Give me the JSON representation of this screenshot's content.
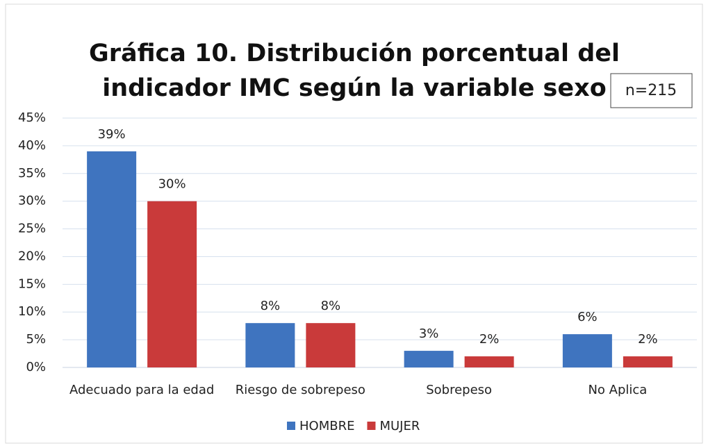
{
  "chart_data": {
    "type": "bar",
    "title": [
      "Gráfica 10. Distribución porcentual del",
      "indicador IMC según la variable sexo"
    ],
    "annotation": "n=215",
    "categories": [
      "Adecuado para la edad",
      "Riesgo de sobrepeso",
      "Sobrepeso",
      "No Aplica"
    ],
    "series": [
      {
        "name": "HOMBRE",
        "color": "#3f74bf",
        "values": [
          39,
          8,
          3,
          6
        ],
        "value_labels": [
          "39%",
          "8%",
          "3%",
          "6%"
        ]
      },
      {
        "name": "MUJER",
        "color": "#c93a3a",
        "values": [
          30,
          8,
          2,
          2
        ],
        "value_labels": [
          "30%",
          "8%",
          "2%",
          "2%"
        ]
      }
    ],
    "ylim": [
      0,
      45
    ],
    "yticks": [
      {
        "value": 0,
        "label": "0%"
      },
      {
        "value": 5,
        "label": "5%"
      },
      {
        "value": 10,
        "label": "10%"
      },
      {
        "value": 15,
        "label": "15%"
      },
      {
        "value": 20,
        "label": "20%"
      },
      {
        "value": 25,
        "label": "25%"
      },
      {
        "value": 30,
        "label": "30%"
      },
      {
        "value": 35,
        "label": "35%"
      },
      {
        "value": 40,
        "label": "40%"
      },
      {
        "value": 45,
        "label": "45%"
      }
    ],
    "grid": true,
    "legend": "bottom"
  }
}
